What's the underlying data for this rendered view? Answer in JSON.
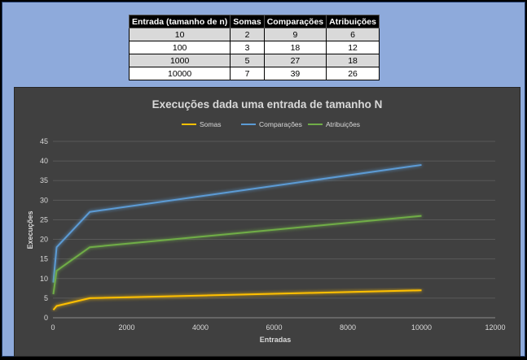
{
  "table": {
    "headers": [
      "Entrada (tamanho de n)",
      "Somas",
      "Comparações",
      "Atribuições"
    ],
    "rows": [
      [
        "10",
        "2",
        "9",
        "6"
      ],
      [
        "100",
        "3",
        "18",
        "12"
      ],
      [
        "1000",
        "5",
        "27",
        "18"
      ],
      [
        "10000",
        "7",
        "39",
        "26"
      ]
    ]
  },
  "chart_data": {
    "type": "line",
    "title": "Execuções dada uma entrada de tamanho N",
    "xlabel": "Entradas",
    "ylabel": "Execuções",
    "x": [
      10,
      100,
      1000,
      10000
    ],
    "series": [
      {
        "name": "Somas",
        "values": [
          2,
          3,
          5,
          7
        ],
        "color": "#ffc000"
      },
      {
        "name": "Comparações",
        "values": [
          9,
          18,
          27,
          39
        ],
        "color": "#5b9bd5"
      },
      {
        "name": "Atribuições",
        "values": [
          6,
          12,
          18,
          26
        ],
        "color": "#70ad47"
      }
    ],
    "xlim": [
      0,
      12000
    ],
    "ylim": [
      0,
      45
    ],
    "xticks": [
      0,
      2000,
      4000,
      6000,
      8000,
      10000,
      12000
    ],
    "yticks": [
      0,
      5,
      10,
      15,
      20,
      25,
      30,
      35,
      40,
      45
    ],
    "grid": true,
    "legend": "top"
  }
}
